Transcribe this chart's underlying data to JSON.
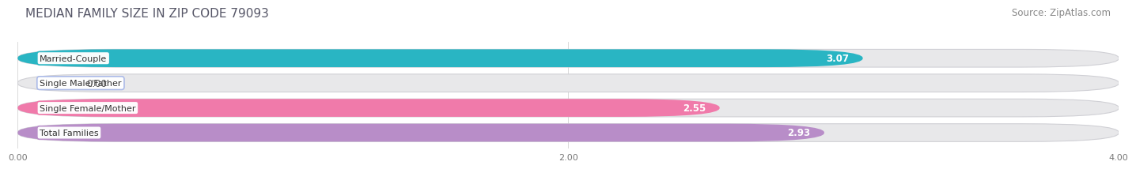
{
  "title": "Median Family Size in Zip Code 79093",
  "title_display": "MEDIAN FAMILY SIZE IN ZIP CODE 79093",
  "source": "Source: ZipAtlas.com",
  "categories": [
    "Married-Couple",
    "Single Male/Father",
    "Single Female/Mother",
    "Total Families"
  ],
  "values": [
    3.07,
    0.0,
    2.55,
    2.93
  ],
  "bar_colors": [
    "#29b5c3",
    "#aab9e8",
    "#f07aaa",
    "#b88dc8"
  ],
  "xlim": [
    0,
    4.0
  ],
  "xtick_labels": [
    "0.00",
    "2.00",
    "4.00"
  ],
  "xtick_vals": [
    0.0,
    2.0,
    4.0
  ],
  "bg_color": "#ffffff",
  "bar_bg_color": "#e8e8ea",
  "title_fontsize": 11,
  "source_fontsize": 8.5,
  "cat_label_fontsize": 8,
  "val_label_fontsize": 8.5,
  "tick_fontsize": 8,
  "bar_height": 0.72,
  "rounding": 0.35
}
